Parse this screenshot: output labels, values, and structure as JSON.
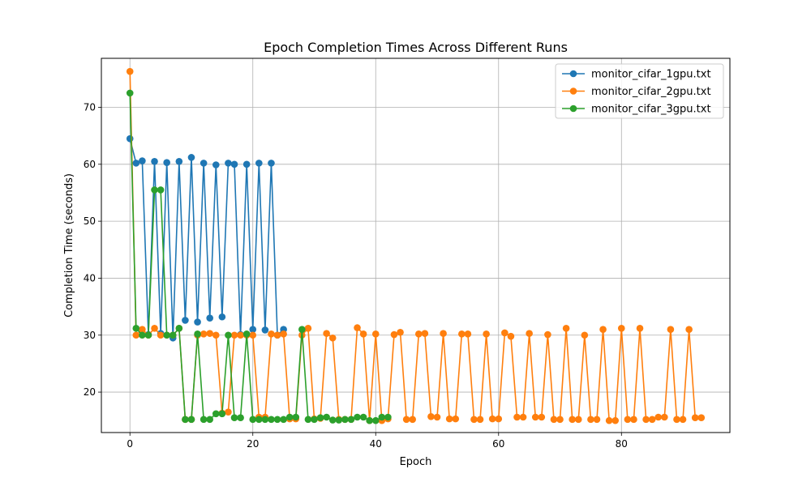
{
  "chart_data": {
    "type": "line",
    "title": "Epoch Completion Times Across Different Runs",
    "xlabel": "Epoch",
    "ylabel": "Completion Time (seconds)",
    "xlim": [
      -4.65,
      97.65
    ],
    "ylim": [
      12.9,
      78.6
    ],
    "xticks": [
      0,
      20,
      40,
      60,
      80
    ],
    "yticks": [
      20,
      30,
      40,
      50,
      60,
      70
    ],
    "grid": true,
    "legend_position": "top-right",
    "series": [
      {
        "name": "monitor_cifar_1gpu.txt",
        "color": "#1f77b4",
        "values": [
          64.5,
          60.2,
          60.6,
          30.1,
          60.5,
          30.3,
          60.3,
          29.5,
          60.5,
          32.6,
          61.2,
          32.3,
          60.2,
          33.0,
          59.9,
          33.2,
          60.2,
          60.0,
          30.1,
          60.0,
          31.0,
          60.2,
          30.9,
          60.2,
          30.0,
          31.0
        ]
      },
      {
        "name": "monitor_cifar_2gpu.txt",
        "color": "#ff7f0e",
        "values": [
          76.3,
          30.0,
          31.0,
          30.0,
          31.2,
          30.0,
          30.0,
          30.0,
          31.2,
          15.2,
          15.2,
          30.0,
          30.2,
          30.3,
          30.0,
          16.3,
          16.5,
          30.0,
          30.0,
          30.0,
          30.0,
          15.6,
          15.6,
          30.2,
          30.0,
          30.2,
          15.3,
          15.3,
          30.0,
          31.2,
          15.3,
          15.4,
          30.3,
          29.5,
          15.2,
          15.2,
          15.2,
          31.3,
          30.2,
          15.0,
          30.2,
          15.0,
          15.3,
          30.1,
          30.5,
          15.2,
          15.2,
          30.2,
          30.3,
          15.7,
          15.6,
          30.3,
          15.3,
          15.3,
          30.2,
          30.2,
          15.2,
          15.2,
          30.2,
          15.3,
          15.3,
          30.4,
          29.8,
          15.6,
          15.6,
          30.3,
          15.6,
          15.6,
          30.1,
          15.2,
          15.2,
          31.2,
          15.2,
          15.2,
          30.0,
          15.2,
          15.2,
          31.0,
          15.0,
          15.0,
          31.2,
          15.2,
          15.2,
          31.2,
          15.2,
          15.2,
          15.6,
          15.6,
          31.0,
          15.2,
          15.2,
          31.0,
          15.5,
          15.5
        ]
      },
      {
        "name": "monitor_cifar_3gpu.txt",
        "color": "#2ca02c",
        "values": [
          72.5,
          31.2,
          30.0,
          30.0,
          55.5,
          55.5,
          30.0,
          30.0,
          31.2,
          15.2,
          15.2,
          30.2,
          15.2,
          15.2,
          16.2,
          16.2,
          30.0,
          15.5,
          15.5,
          30.2,
          15.2,
          15.2,
          15.2,
          15.2,
          15.2,
          15.2,
          15.6,
          15.6,
          31.0,
          15.2,
          15.2,
          15.5,
          15.6,
          15.1,
          15.1,
          15.2,
          15.2,
          15.6,
          15.6,
          15.0,
          15.0,
          15.6,
          15.6
        ]
      }
    ]
  }
}
